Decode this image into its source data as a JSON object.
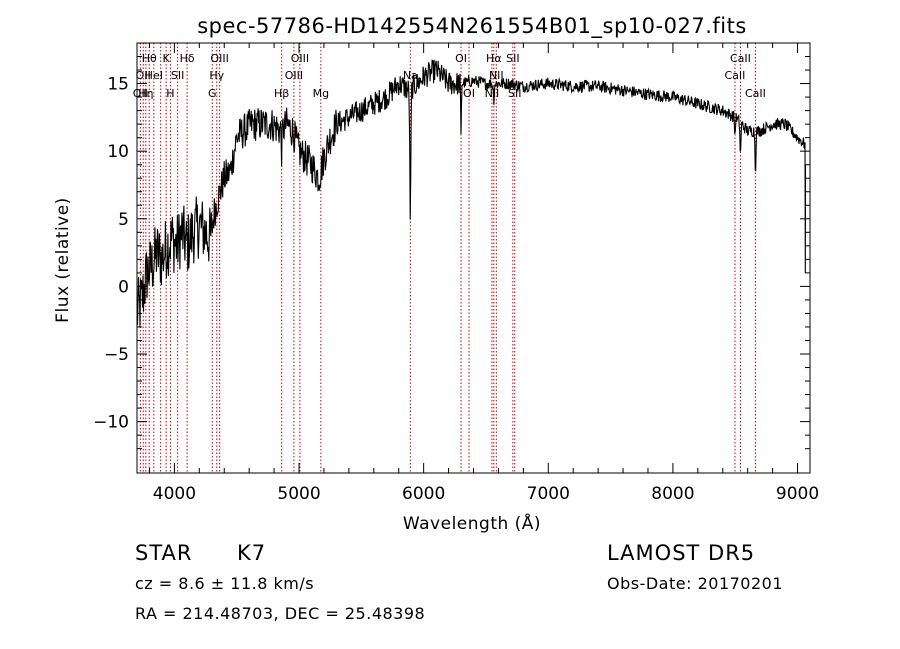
{
  "chart_data": {
    "type": "line",
    "title": "spec-57786-HD142554N261554B01_sp10-027.fits",
    "xlabel": "Wavelength (Å)",
    "ylabel": "Flux (relative)",
    "xlim": [
      3700,
      9100
    ],
    "ylim": [
      -13.8,
      18
    ],
    "x_ticks": [
      4000,
      5000,
      6000,
      7000,
      8000,
      9000
    ],
    "y_ticks": [
      -10,
      -5,
      0,
      5,
      10,
      15
    ],
    "x_tick_labels": [
      "4000",
      "5000",
      "6000",
      "7000",
      "8000",
      "9000"
    ],
    "y_tick_labels": [
      "−10",
      "−5",
      "0",
      "5",
      "10",
      "15"
    ],
    "grid": false,
    "line_color": "#000000",
    "marker_color": "#cc0000",
    "spectrum_anchors": [
      [
        3700,
        -2
      ],
      [
        3740,
        -1
      ],
      [
        3780,
        1
      ],
      [
        3820,
        1.5
      ],
      [
        3860,
        2.5
      ],
      [
        3900,
        2
      ],
      [
        3940,
        3
      ],
      [
        3980,
        3.5
      ],
      [
        4020,
        3
      ],
      [
        4060,
        4
      ],
      [
        4100,
        3
      ],
      [
        4150,
        4
      ],
      [
        4200,
        4.5
      ],
      [
        4250,
        4
      ],
      [
        4290,
        3.5
      ],
      [
        4320,
        5.5
      ],
      [
        4350,
        6.5
      ],
      [
        4400,
        8
      ],
      [
        4450,
        8.5
      ],
      [
        4500,
        11
      ],
      [
        4560,
        11.5
      ],
      [
        4620,
        12
      ],
      [
        4700,
        12
      ],
      [
        4780,
        12
      ],
      [
        4860,
        11.5
      ],
      [
        4900,
        12
      ],
      [
        4950,
        11.5
      ],
      [
        5000,
        10
      ],
      [
        5100,
        9
      ],
      [
        5160,
        8
      ],
      [
        5200,
        9.5
      ],
      [
        5250,
        11
      ],
      [
        5300,
        12
      ],
      [
        5400,
        12.5
      ],
      [
        5500,
        13
      ],
      [
        5600,
        13.5
      ],
      [
        5700,
        14
      ],
      [
        5800,
        15
      ],
      [
        5880,
        14.5
      ],
      [
        5950,
        15
      ],
      [
        6000,
        15.5
      ],
      [
        6100,
        16
      ],
      [
        6200,
        15
      ],
      [
        6300,
        15
      ],
      [
        6400,
        15.2
      ],
      [
        6500,
        15
      ],
      [
        6600,
        15
      ],
      [
        6700,
        15
      ],
      [
        6800,
        14.8
      ],
      [
        7000,
        15
      ],
      [
        7200,
        14.8
      ],
      [
        7400,
        14.8
      ],
      [
        7600,
        14.5
      ],
      [
        7800,
        14.2
      ],
      [
        8000,
        14
      ],
      [
        8200,
        13.5
      ],
      [
        8400,
        13
      ],
      [
        8500,
        12.5
      ],
      [
        8600,
        11.5
      ],
      [
        8700,
        11.5
      ],
      [
        8800,
        12
      ],
      [
        8900,
        12
      ],
      [
        9000,
        11
      ],
      [
        9060,
        10.5
      ]
    ],
    "spectrum_dips": [
      {
        "x": 5893,
        "depth": 9.5,
        "width": 6
      },
      {
        "x": 6300,
        "depth": 4,
        "width": 4
      },
      {
        "x": 8498,
        "depth": 1.5,
        "width": 4
      },
      {
        "x": 8542,
        "depth": 2.5,
        "width": 5
      },
      {
        "x": 8662,
        "depth": 3,
        "width": 5
      },
      {
        "x": 4861,
        "depth": 1.5,
        "width": 5
      },
      {
        "x": 6563,
        "depth": 1.2,
        "width": 5
      }
    ],
    "line_markers": [
      {
        "x": 3727,
        "label": "OII",
        "row": 2
      },
      {
        "x": 3750,
        "label": "OII",
        "row": 1
      },
      {
        "x": 3771,
        "label": "Hη",
        "row": 2
      },
      {
        "x": 3798,
        "label": "Hθ",
        "row": 0
      },
      {
        "x": 3835,
        "label": "HeI",
        "row": 1
      },
      {
        "x": 3890,
        "label": "",
        "row": 0
      },
      {
        "x": 3934,
        "label": "K",
        "row": 0
      },
      {
        "x": 3968,
        "label": "H",
        "row": 2
      },
      {
        "x": 4026,
        "label": "SII",
        "row": 1
      },
      {
        "x": 4102,
        "label": "Hδ",
        "row": 0
      },
      {
        "x": 4304,
        "label": "G",
        "row": 2
      },
      {
        "x": 4340,
        "label": "Hγ",
        "row": 1
      },
      {
        "x": 4363,
        "label": "OIII",
        "row": 0
      },
      {
        "x": 4861,
        "label": "Hβ",
        "row": 2
      },
      {
        "x": 4959,
        "label": "OIII",
        "row": 1
      },
      {
        "x": 5007,
        "label": "OIII",
        "row": 0
      },
      {
        "x": 5175,
        "label": "Mg",
        "row": 2
      },
      {
        "x": 5893,
        "label": "Na",
        "row": 1
      },
      {
        "x": 6300,
        "label": "OI",
        "row": 0
      },
      {
        "x": 6364,
        "label": "OI",
        "row": 2
      },
      {
        "x": 6548,
        "label": "NII",
        "row": 2
      },
      {
        "x": 6563,
        "label": "Hα",
        "row": 0
      },
      {
        "x": 6583,
        "label": "NII",
        "row": 1
      },
      {
        "x": 6716,
        "label": "SII",
        "row": 0
      },
      {
        "x": 6731,
        "label": "SII",
        "row": 2
      },
      {
        "x": 8498,
        "label": "CaII",
        "row": 1
      },
      {
        "x": 8542,
        "label": "CaII",
        "row": 0
      },
      {
        "x": 8662,
        "label": "CaII",
        "row": 2
      }
    ]
  },
  "info": {
    "object_class": "STAR",
    "subclass": "K7",
    "survey": "LAMOST  DR5",
    "redshift_text": "cz = 8.6 ± 11.8 km/s",
    "obs_date_text": "Obs-Date: 20170201",
    "coords_text": "RA = 214.48703, DEC =  25.48398"
  }
}
